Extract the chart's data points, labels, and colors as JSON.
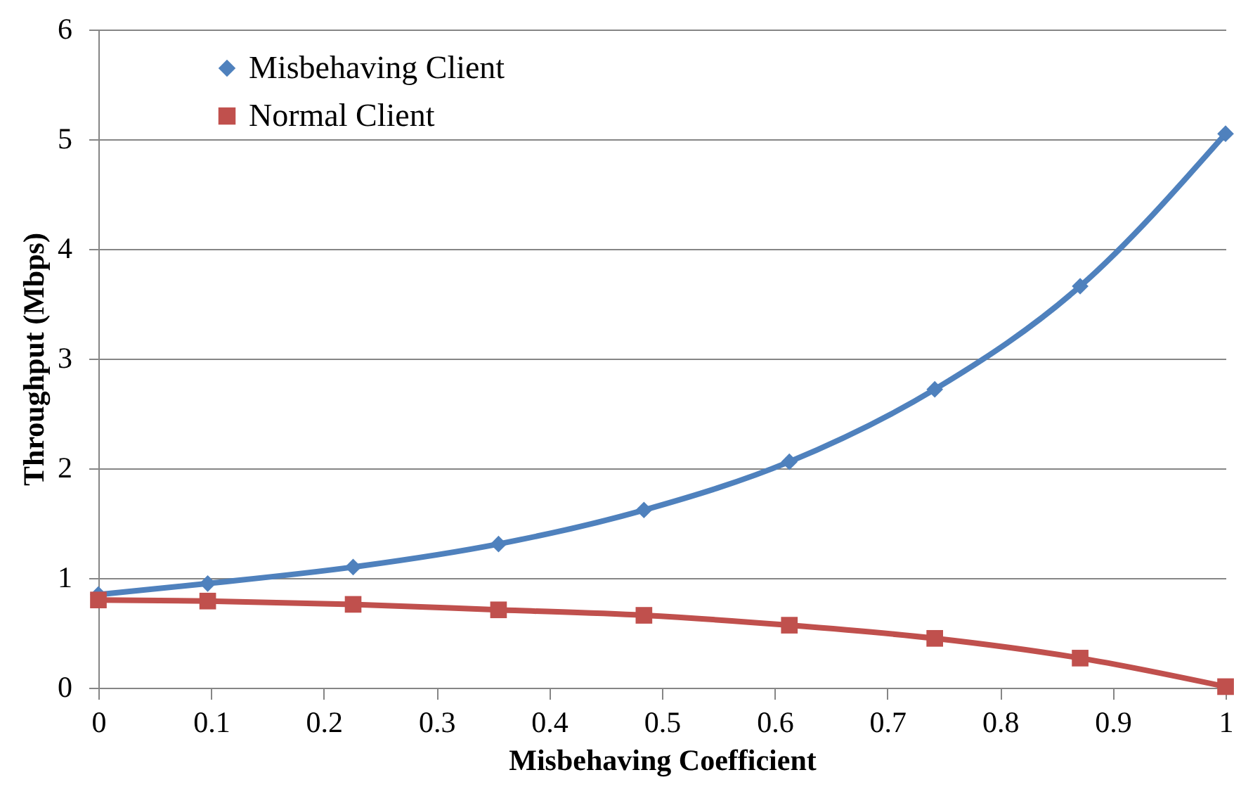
{
  "chart_data": {
    "type": "line",
    "xlabel": "Misbehaving Coefficient",
    "ylabel": "Throughput (Mbps)",
    "x": [
      0,
      0.097,
      0.226,
      0.355,
      0.484,
      0.613,
      0.742,
      0.871,
      1
    ],
    "series": [
      {
        "name": "Misbehaving Client",
        "color": "#4f81bd",
        "marker": "diamond",
        "values": [
          0.85,
          0.95,
          1.1,
          1.31,
          1.62,
          2.06,
          2.72,
          3.66,
          5.05
        ]
      },
      {
        "name": "Normal Client",
        "color": "#c0504d",
        "marker": "square",
        "values": [
          0.8,
          0.79,
          0.76,
          0.71,
          0.66,
          0.57,
          0.45,
          0.27,
          0.01
        ]
      }
    ],
    "xlim": [
      0,
      1
    ],
    "xticks": [
      0,
      0.1,
      0.2,
      0.3,
      0.4,
      0.5,
      0.6,
      0.7,
      0.8,
      0.9,
      1
    ],
    "ylim": [
      0,
      6
    ],
    "yticks": [
      0,
      1,
      2,
      3,
      4,
      5,
      6
    ],
    "grid": "y",
    "legend": "top left",
    "line_style": "solid"
  }
}
